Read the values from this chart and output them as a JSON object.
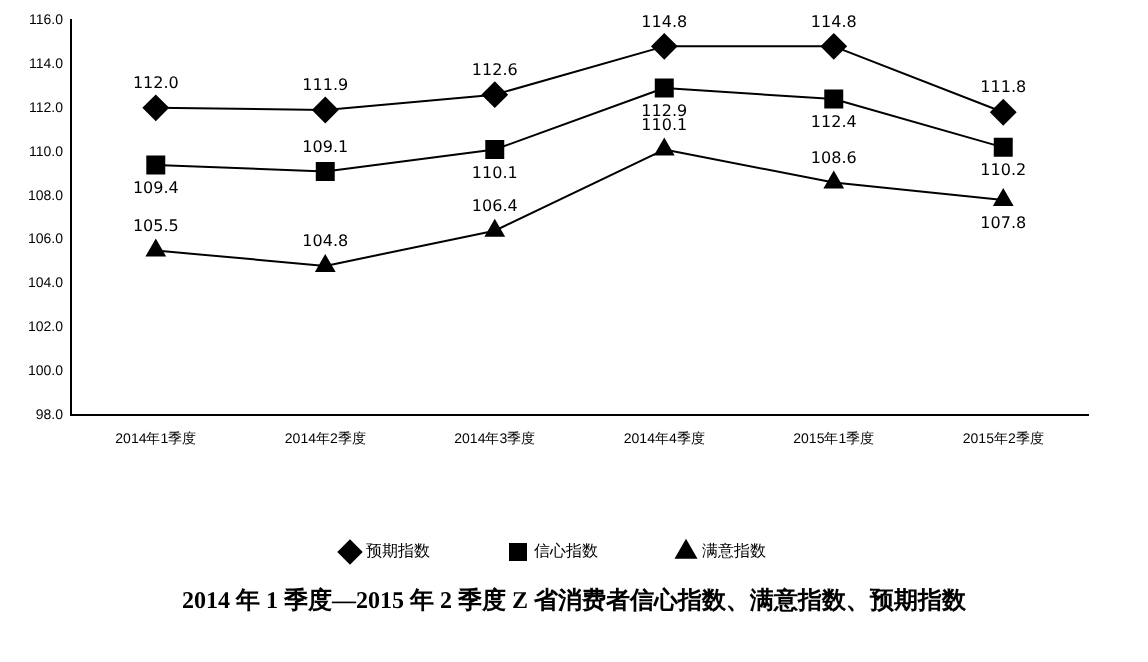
{
  "chart_data": {
    "type": "line",
    "title": "2014 年 1 季度—2015 年 2 季度 Z 省消费者信心指数、满意指数、预期指数",
    "categories": [
      "2014年1季度",
      "2014年2季度",
      "2014年3季度",
      "2014年4季度",
      "2015年1季度",
      "2015年2季度"
    ],
    "series": [
      {
        "name": "预期指数",
        "color": "#000000",
        "marker": "diamond",
        "values": [
          112.0,
          111.9,
          112.6,
          114.8,
          114.8,
          111.8
        ],
        "value_labels": [
          "112.0",
          "111.9",
          "112.6",
          "114.8",
          "114.8",
          "111.8"
        ]
      },
      {
        "name": "信心指数",
        "color": "#000000",
        "marker": "square",
        "values": [
          109.4,
          109.1,
          110.1,
          112.9,
          112.4,
          110.2
        ],
        "value_labels": [
          "109.4",
          "109.1",
          "110.1",
          "112.9",
          "112.4",
          "110.2"
        ]
      },
      {
        "name": "满意指数",
        "color": "#000000",
        "marker": "triangle",
        "values": [
          105.5,
          104.8,
          106.4,
          110.1,
          108.6,
          107.8
        ],
        "value_labels": [
          "105.5",
          "104.8",
          "106.4",
          "110.1",
          "108.6",
          "107.8"
        ]
      }
    ],
    "ylim": [
      98,
      116
    ],
    "yticks": [
      {
        "value": 98,
        "label": "98.0"
      },
      {
        "value": 100,
        "label": "100.0"
      },
      {
        "value": 102,
        "label": "102.0"
      },
      {
        "value": 104,
        "label": "104.0"
      },
      {
        "value": 106,
        "label": "106.0"
      },
      {
        "value": 108,
        "label": "108.0"
      },
      {
        "value": 110,
        "label": "110.0"
      },
      {
        "value": 112,
        "label": "112.0"
      },
      {
        "value": 114,
        "label": "114.0"
      },
      {
        "value": 116,
        "label": "116.0"
      }
    ],
    "grid": false,
    "legend": "bottom",
    "line_style": "solid"
  }
}
